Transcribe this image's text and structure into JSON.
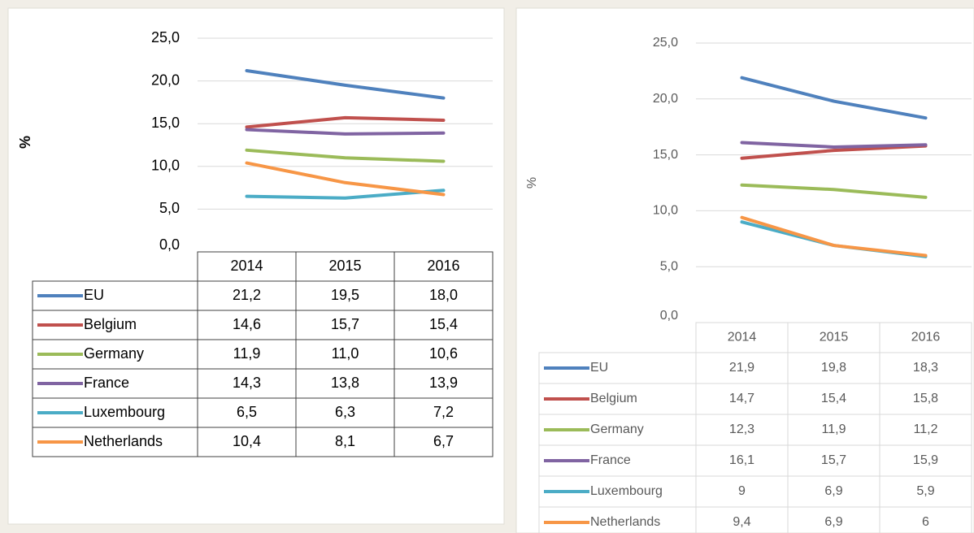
{
  "chart_data": [
    {
      "type": "line",
      "y_label": "%",
      "categories": [
        "2014",
        "2015",
        "2016"
      ],
      "ylim": [
        0,
        25
      ],
      "yticks": [
        {
          "value": 0,
          "label": "0,0"
        },
        {
          "value": 5,
          "label": "5,0"
        },
        {
          "value": 10,
          "label": "10,0"
        },
        {
          "value": 15,
          "label": "15,0"
        },
        {
          "value": 20,
          "label": "20,0"
        },
        {
          "value": 25,
          "label": "25,0"
        }
      ],
      "grid": true,
      "series": [
        {
          "name": "EU",
          "color": "#4f81bd",
          "values": [
            21.2,
            19.5,
            18.0
          ],
          "value_labels": [
            "21,2",
            "19,5",
            "18,0"
          ]
        },
        {
          "name": "Belgium",
          "color": "#c0504d",
          "values": [
            14.6,
            15.7,
            15.4
          ],
          "value_labels": [
            "14,6",
            "15,7",
            "15,4"
          ]
        },
        {
          "name": "Germany",
          "color": "#9bbb59",
          "values": [
            11.9,
            11.0,
            10.6
          ],
          "value_labels": [
            "11,9",
            "11,0",
            "10,6"
          ]
        },
        {
          "name": "France",
          "color": "#8064a2",
          "values": [
            14.3,
            13.8,
            13.9
          ],
          "value_labels": [
            "14,3",
            "13,8",
            "13,9"
          ]
        },
        {
          "name": "Luxembourg",
          "color": "#4bacc6",
          "values": [
            6.5,
            6.3,
            7.2
          ],
          "value_labels": [
            "6,5",
            "6,3",
            "7,2"
          ]
        },
        {
          "name": "Netherlands",
          "color": "#f79646",
          "values": [
            10.4,
            8.1,
            6.7
          ],
          "value_labels": [
            "10,4",
            "8,1",
            "6,7"
          ]
        }
      ]
    },
    {
      "type": "line",
      "y_label": "%",
      "categories": [
        "2014",
        "2015",
        "2016"
      ],
      "ylim": [
        0,
        25
      ],
      "yticks": [
        {
          "value": 0,
          "label": "0,0"
        },
        {
          "value": 5,
          "label": "5,0"
        },
        {
          "value": 10,
          "label": "10,0"
        },
        {
          "value": 15,
          "label": "15,0"
        },
        {
          "value": 20,
          "label": "20,0"
        },
        {
          "value": 25,
          "label": "25,0"
        }
      ],
      "grid": true,
      "series": [
        {
          "name": "EU",
          "color": "#4f81bd",
          "values": [
            21.9,
            19.8,
            18.3
          ],
          "value_labels": [
            "21,9",
            "19,8",
            "18,3"
          ]
        },
        {
          "name": "Belgium",
          "color": "#c0504d",
          "values": [
            14.7,
            15.4,
            15.8
          ],
          "value_labels": [
            "14,7",
            "15,4",
            "15,8"
          ]
        },
        {
          "name": "Germany",
          "color": "#9bbb59",
          "values": [
            12.3,
            11.9,
            11.2
          ],
          "value_labels": [
            "12,3",
            "11,9",
            "11,2"
          ]
        },
        {
          "name": "France",
          "color": "#8064a2",
          "values": [
            16.1,
            15.7,
            15.9
          ],
          "value_labels": [
            "16,1",
            "15,7",
            "15,9"
          ]
        },
        {
          "name": "Luxembourg",
          "color": "#4bacc6",
          "values": [
            9,
            6.9,
            5.9
          ],
          "value_labels": [
            "9",
            "6,9",
            "5,9"
          ]
        },
        {
          "name": "Netherlands",
          "color": "#f79646",
          "values": [
            9.4,
            6.9,
            6
          ],
          "value_labels": [
            "9,4",
            "6,9",
            "6"
          ]
        }
      ]
    }
  ]
}
